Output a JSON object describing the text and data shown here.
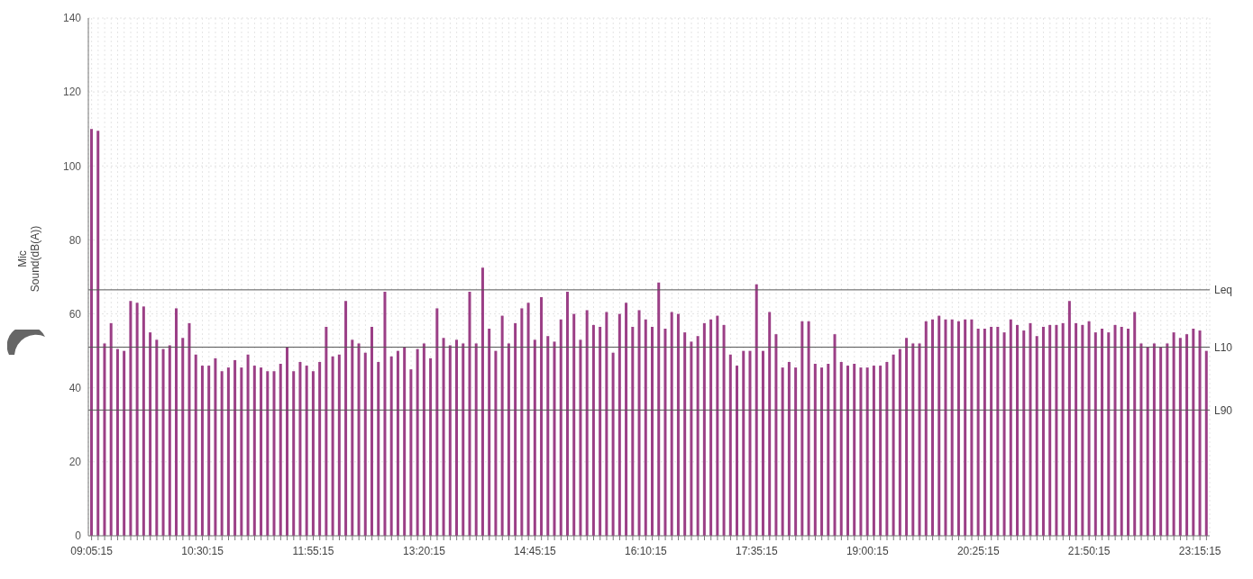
{
  "chart_data": {
    "type": "bar",
    "ylabel": "Mic\nSound(dB(A))",
    "categories": [
      "09:05:15",
      null,
      null,
      null,
      null,
      null,
      null,
      null,
      null,
      null,
      null,
      null,
      null,
      null,
      null,
      null,
      null,
      "10:30:15",
      null,
      null,
      null,
      null,
      null,
      null,
      null,
      null,
      null,
      null,
      null,
      null,
      null,
      null,
      null,
      null,
      "11:55:15",
      null,
      null,
      null,
      null,
      null,
      null,
      null,
      null,
      null,
      null,
      null,
      null,
      null,
      null,
      null,
      null,
      "13:20:15",
      null,
      null,
      null,
      null,
      null,
      null,
      null,
      null,
      null,
      null,
      null,
      null,
      null,
      null,
      null,
      null,
      "14:45:15",
      null,
      null,
      null,
      null,
      null,
      null,
      null,
      null,
      null,
      null,
      null,
      null,
      null,
      null,
      null,
      null,
      "16:10:15",
      null,
      null,
      null,
      null,
      null,
      null,
      null,
      null,
      null,
      null,
      null,
      null,
      null,
      null,
      null,
      null,
      "17:35:15",
      null,
      null,
      null,
      null,
      null,
      null,
      null,
      null,
      null,
      null,
      null,
      null,
      null,
      null,
      null,
      null,
      "19:00:15",
      null,
      null,
      null,
      null,
      null,
      null,
      null,
      null,
      null,
      null,
      null,
      null,
      null,
      null,
      null,
      null,
      "20:25:15",
      null,
      null,
      null,
      null,
      null,
      null,
      null,
      null,
      null,
      null,
      null,
      null,
      null,
      null,
      null,
      null,
      "21:50:15",
      null,
      null,
      null,
      null,
      null,
      null,
      null,
      null,
      null,
      null,
      null,
      null,
      null,
      null,
      null,
      null,
      "23:15:15",
      null
    ],
    "values": [
      110,
      109.5,
      52,
      57.5,
      50.5,
      50,
      63.5,
      63,
      62,
      55,
      53,
      50.5,
      51.5,
      61.5,
      53.5,
      57.5,
      49,
      46,
      46,
      48,
      44.5,
      45.5,
      47.5,
      45.5,
      49,
      46,
      45.5,
      44.5,
      44.5,
      46.5,
      51,
      44.5,
      47,
      46,
      44.5,
      47,
      56.5,
      48.5,
      49,
      63.5,
      53,
      52,
      49.5,
      56.5,
      47,
      66,
      48.5,
      50,
      51,
      45,
      50.5,
      52,
      48,
      61.5,
      53.5,
      51.5,
      53,
      52,
      66,
      52,
      72.5,
      56,
      50,
      59.5,
      52,
      57.5,
      61.5,
      63,
      53,
      64.5,
      54,
      52.5,
      58.5,
      66,
      60,
      53,
      61,
      57,
      56.5,
      60.5,
      49.5,
      60,
      63,
      56.5,
      61,
      58.5,
      56.5,
      68.5,
      56,
      60.5,
      60,
      55,
      52.5,
      54,
      57.5,
      58.5,
      59.5,
      57,
      49,
      46,
      50,
      50,
      68,
      50,
      60.5,
      54.5,
      45.5,
      47,
      45.5,
      58,
      58,
      46.5,
      45.5,
      46.5,
      54.5,
      47,
      46,
      46.5,
      45.5,
      45.5,
      46,
      46,
      47,
      49,
      50.5,
      53.5,
      52,
      52,
      58,
      58.5,
      59.5,
      58.5,
      58.5,
      58,
      58.5,
      58.5,
      56,
      56,
      56.5,
      56.5,
      55,
      58.5,
      57,
      55.5,
      57.5,
      54,
      56.5,
      57,
      57,
      57.5,
      63.5,
      57.5,
      57,
      58,
      55,
      56,
      55,
      57,
      56.5,
      56,
      60.5,
      52,
      51,
      52,
      51,
      52,
      55,
      53.5,
      54.5,
      56,
      55.5,
      50
    ],
    "color": "#9b3f86",
    "ylim": [
      0,
      140
    ],
    "yticks": [
      0,
      20,
      40,
      60,
      80,
      100,
      120,
      140
    ],
    "grid": true,
    "ref_lines": [
      {
        "axis": "y",
        "value": 66.5,
        "label": "Leq",
        "color": "#555555"
      },
      {
        "axis": "y",
        "value": 51,
        "label": "L10",
        "color": "#555555"
      },
      {
        "axis": "y",
        "value": 34,
        "label": "L90",
        "color": "#555555"
      }
    ]
  }
}
